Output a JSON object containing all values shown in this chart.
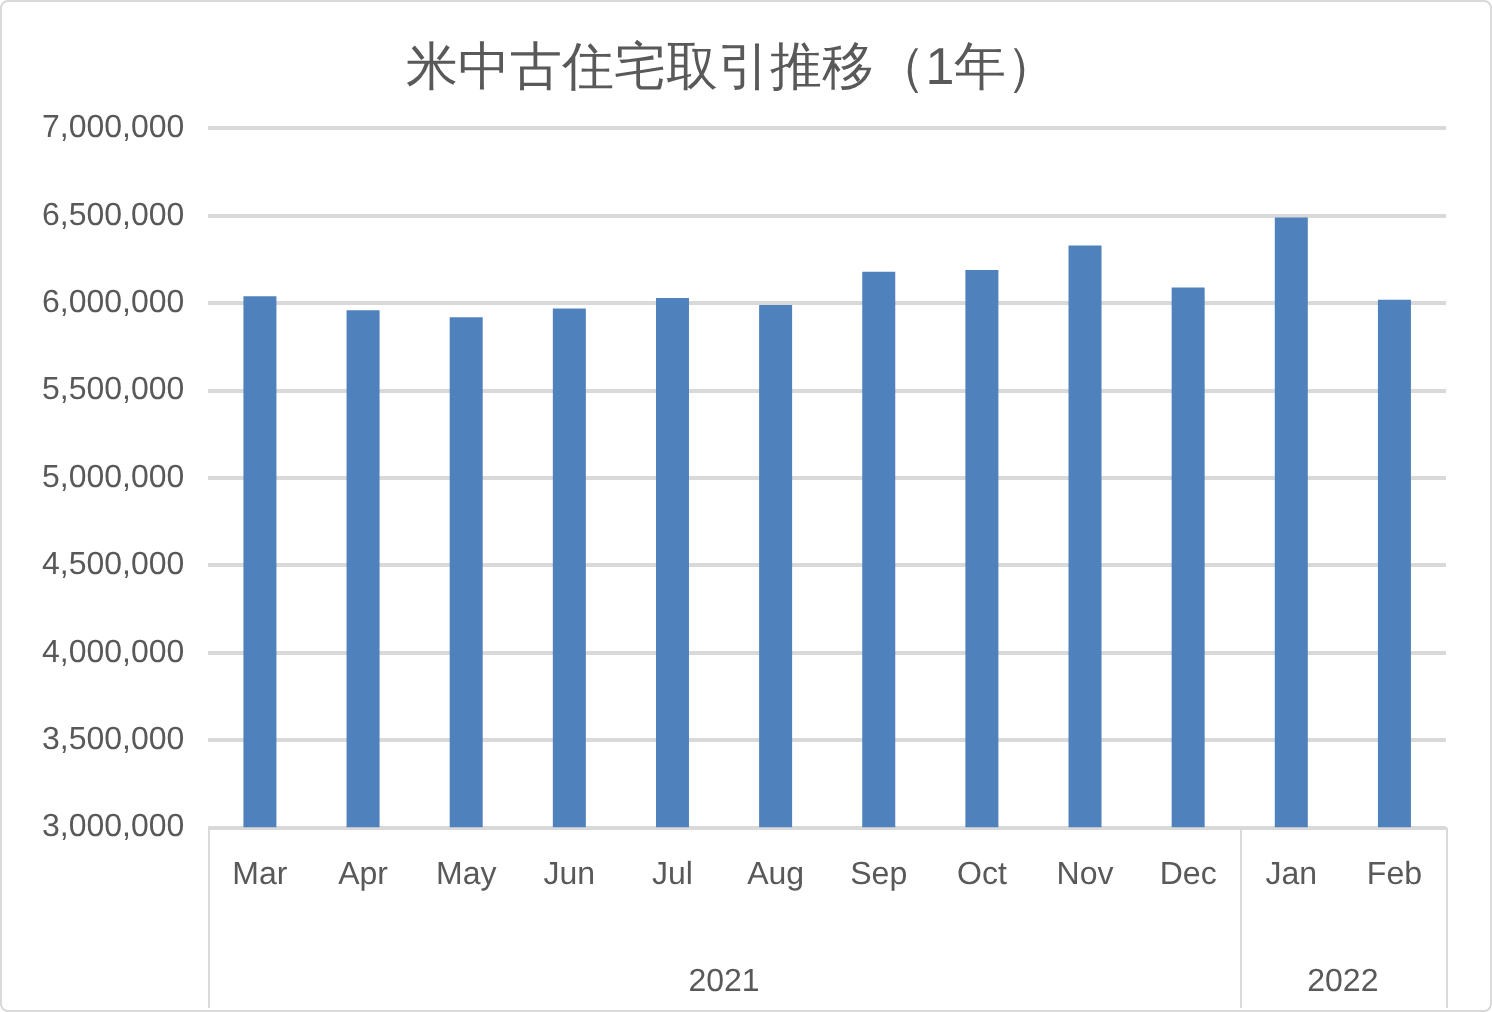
{
  "chart_data": {
    "type": "bar",
    "title": "米中古住宅取引推移（1年）",
    "categories": [
      "Mar",
      "Apr",
      "May",
      "Jun",
      "Jul",
      "Aug",
      "Sep",
      "Oct",
      "Nov",
      "Dec",
      "Jan",
      "Feb"
    ],
    "values": [
      6040000,
      5960000,
      5920000,
      5970000,
      6030000,
      5990000,
      6180000,
      6190000,
      6330000,
      6090000,
      6490000,
      6020000
    ],
    "color": "#4f81bd",
    "ylim": [
      3000000,
      7000000
    ],
    "yticks": [
      {
        "value": 3000000,
        "label": "3,000,000"
      },
      {
        "value": 3500000,
        "label": "3,500,000"
      },
      {
        "value": 4000000,
        "label": "4,000,000"
      },
      {
        "value": 4500000,
        "label": "4,500,000"
      },
      {
        "value": 5000000,
        "label": "5,000,000"
      },
      {
        "value": 5500000,
        "label": "5,500,000"
      },
      {
        "value": 6000000,
        "label": "6,000,000"
      },
      {
        "value": 6500000,
        "label": "6,500,000"
      },
      {
        "value": 7000000,
        "label": "7,000,000"
      }
    ],
    "grid": "y",
    "legend": false,
    "annotations": [
      "2021",
      "2022"
    ]
  }
}
